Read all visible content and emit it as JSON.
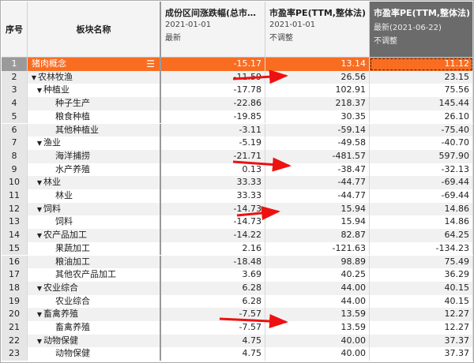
{
  "header": {
    "seq": "序号",
    "name": "板块名称",
    "col1": {
      "title": "成份区间涨跌幅(总市…",
      "date": "2021-01-01",
      "sub": "最新"
    },
    "col2": {
      "title": "市盈率PE(TTM,整体法)",
      "date": "2021-01-01",
      "sub": "不调整"
    },
    "col3": {
      "title": "市盈率PE(TTM,整体法)",
      "date": "最新(2021-06-22)",
      "sub": "不调整"
    }
  },
  "colors": {
    "highlight": "#f96d22",
    "selected_header": "#6b6b6b",
    "arrow": "#ee1111"
  },
  "rows": [
    {
      "seq": "1",
      "name": "猪肉概念",
      "level": 0,
      "expand": false,
      "v1": "-15.17",
      "v2": "13.14",
      "v3": "11.12",
      "highlight": true
    },
    {
      "seq": "2",
      "name": "农林牧渔",
      "level": 0,
      "expand": true,
      "v1": "-11.59",
      "v2": "26.56",
      "v3": "23.15"
    },
    {
      "seq": "3",
      "name": "种植业",
      "level": 1,
      "expand": true,
      "v1": "-17.78",
      "v2": "102.91",
      "v3": "75.56"
    },
    {
      "seq": "4",
      "name": "种子生产",
      "level": 2,
      "v1": "-22.86",
      "v2": "218.37",
      "v3": "145.44"
    },
    {
      "seq": "5",
      "name": "粮食种植",
      "level": 2,
      "v1": "-19.85",
      "v2": "30.35",
      "v3": "26.10"
    },
    {
      "seq": "6",
      "name": "其他种植业",
      "level": 2,
      "v1": "-3.11",
      "v2": "-59.14",
      "v3": "-75.40"
    },
    {
      "seq": "7",
      "name": "渔业",
      "level": 1,
      "expand": true,
      "v1": "-5.19",
      "v2": "-49.58",
      "v3": "-40.70"
    },
    {
      "seq": "8",
      "name": "海洋捕捞",
      "level": 2,
      "v1": "-21.71",
      "v2": "-481.57",
      "v3": "597.90"
    },
    {
      "seq": "9",
      "name": "水产养殖",
      "level": 2,
      "v1": "0.13",
      "v2": "-38.47",
      "v3": "-32.13"
    },
    {
      "seq": "10",
      "name": "林业",
      "level": 1,
      "expand": true,
      "v1": "33.33",
      "v2": "-44.77",
      "v3": "-69.44"
    },
    {
      "seq": "11",
      "name": "林业",
      "level": 2,
      "v1": "33.33",
      "v2": "-44.77",
      "v3": "-69.44"
    },
    {
      "seq": "12",
      "name": "饲料",
      "level": 1,
      "expand": true,
      "v1": "-14.73",
      "v2": "15.94",
      "v3": "14.86"
    },
    {
      "seq": "13",
      "name": "饲料",
      "level": 2,
      "v1": "-14.73",
      "v2": "15.94",
      "v3": "14.86"
    },
    {
      "seq": "14",
      "name": "农产品加工",
      "level": 1,
      "expand": true,
      "v1": "-14.22",
      "v2": "82.87",
      "v3": "64.25"
    },
    {
      "seq": "15",
      "name": "果蔬加工",
      "level": 2,
      "v1": "2.16",
      "v2": "-121.63",
      "v3": "-134.23"
    },
    {
      "seq": "16",
      "name": "粮油加工",
      "level": 2,
      "v1": "-18.48",
      "v2": "98.89",
      "v3": "75.49"
    },
    {
      "seq": "17",
      "name": "其他农产品加工",
      "level": 2,
      "v1": "3.69",
      "v2": "40.25",
      "v3": "36.29"
    },
    {
      "seq": "18",
      "name": "农业综合",
      "level": 1,
      "expand": true,
      "v1": "6.28",
      "v2": "44.00",
      "v3": "40.15"
    },
    {
      "seq": "19",
      "name": "农业综合",
      "level": 2,
      "v1": "6.28",
      "v2": "44.00",
      "v3": "40.15"
    },
    {
      "seq": "20",
      "name": "畜禽养殖",
      "level": 1,
      "expand": true,
      "v1": "-7.57",
      "v2": "13.59",
      "v3": "12.27"
    },
    {
      "seq": "21",
      "name": "畜禽养殖",
      "level": 2,
      "v1": "-7.57",
      "v2": "13.59",
      "v3": "12.27"
    },
    {
      "seq": "22",
      "name": "动物保健",
      "level": 1,
      "expand": true,
      "v1": "4.75",
      "v2": "40.00",
      "v3": "37.37"
    },
    {
      "seq": "23",
      "name": "动物保健",
      "level": 2,
      "v1": "4.75",
      "v2": "40.00",
      "v3": "37.37"
    }
  ]
}
